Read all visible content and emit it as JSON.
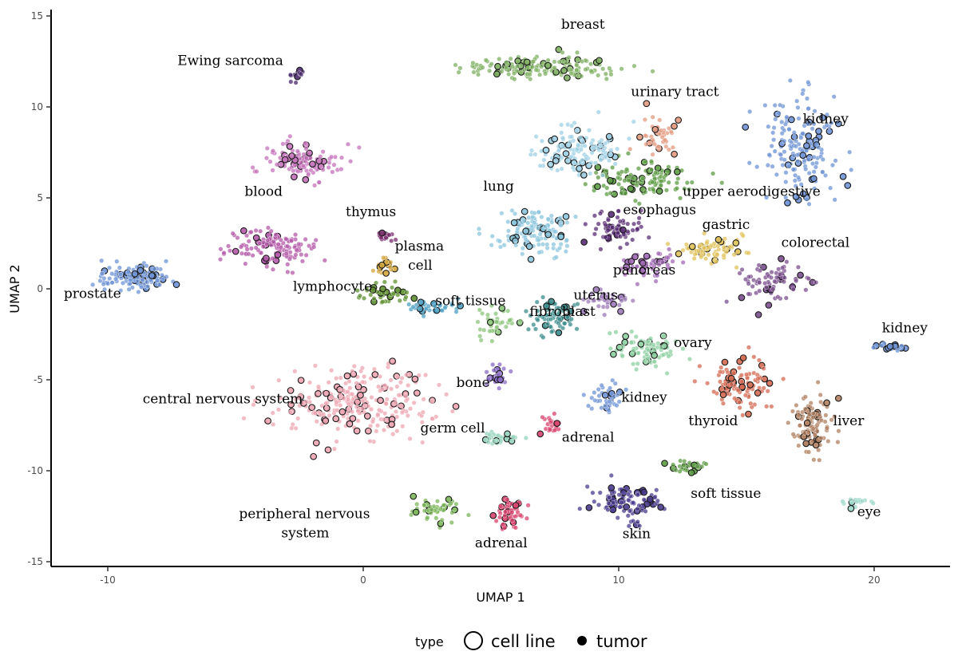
{
  "chart_data": {
    "type": "scatter",
    "title": "",
    "xlabel": "UMAP 1",
    "ylabel": "UMAP 2",
    "xlim": [
      -12.2,
      23.0
    ],
    "ylim": [
      -15.3,
      15.5
    ],
    "x_ticks": [
      {
        "value": -10,
        "label": "-10"
      },
      {
        "value": 0,
        "label": "0"
      },
      {
        "value": 10,
        "label": "10"
      },
      {
        "value": 20,
        "label": "20"
      }
    ],
    "y_ticks": [
      {
        "value": 15,
        "label": "15"
      },
      {
        "value": 10,
        "label": "10"
      },
      {
        "value": 5,
        "label": "5"
      },
      {
        "value": 0,
        "label": "0"
      },
      {
        "value": -5,
        "label": "-5"
      },
      {
        "value": -10,
        "label": "-10"
      },
      {
        "value": -15,
        "label": "-15"
      }
    ],
    "grid": false,
    "legend": {
      "position": "bottom",
      "title": "type",
      "entries": [
        {
          "label": "cell line",
          "marker": "open-circle"
        },
        {
          "label": "tumor",
          "marker": "filled-circle"
        }
      ]
    },
    "clusters": [
      {
        "label": "breast",
        "cx": 7.0,
        "cy": 12.2,
        "sx": 2.6,
        "sy": 0.55,
        "n": 160,
        "color": "#7fb062",
        "label_x": 8.6,
        "label_y": 14.3
      },
      {
        "label": "Ewing sarcoma",
        "cx": -2.6,
        "cy": 11.8,
        "sx": 0.25,
        "sy": 0.3,
        "n": 14,
        "color": "#4a2a6e",
        "label_x": -5.2,
        "label_y": 12.3
      },
      {
        "label": "kidney",
        "cx": 17.2,
        "cy": 7.8,
        "sx": 1.2,
        "sy": 2.2,
        "n": 170,
        "color": "#6f94d6",
        "label_x": 18.1,
        "label_y": 9.1
      },
      {
        "label": "urinary tract",
        "cx": 11.5,
        "cy": 8.3,
        "sx": 0.7,
        "sy": 0.9,
        "n": 45,
        "color": "#e39a80",
        "label_x": 12.2,
        "label_y": 10.6
      },
      {
        "label": "upper aerodigestive",
        "cx": 10.8,
        "cy": 6.0,
        "sx": 1.7,
        "sy": 0.8,
        "n": 120,
        "color": "#5d9c44",
        "label_x": 15.2,
        "label_y": 5.1
      },
      {
        "label": "blood",
        "cx": -2.4,
        "cy": 7.0,
        "sx": 1.2,
        "sy": 0.8,
        "n": 110,
        "color": "#c472ba",
        "label_x": -3.9,
        "label_y": 5.1
      },
      {
        "label": "blood",
        "cx": -3.6,
        "cy": 2.3,
        "sx": 1.5,
        "sy": 0.9,
        "n": 130,
        "color": "#b459a8",
        "label_x": null,
        "label_y": null
      },
      {
        "label": "thymus",
        "cx": 0.8,
        "cy": 2.9,
        "sx": 0.5,
        "sy": 0.25,
        "n": 18,
        "color": "#7a2c6e",
        "label_x": 0.3,
        "label_y": 4.0
      },
      {
        "label": "lung",
        "cx": 6.7,
        "cy": 3.2,
        "sx": 1.3,
        "sy": 1.0,
        "n": 140,
        "color": "#8cc6dd",
        "label_x": 5.3,
        "label_y": 5.4
      },
      {
        "label": "lung",
        "cx": 8.5,
        "cy": 7.6,
        "sx": 1.4,
        "sy": 1.1,
        "n": 130,
        "color": "#9fd0e4",
        "label_x": null,
        "label_y": null
      },
      {
        "label": "esophagus",
        "cx": 9.9,
        "cy": 3.3,
        "sx": 0.9,
        "sy": 0.7,
        "n": 70,
        "color": "#5a2d75",
        "label_x": 11.6,
        "label_y": 4.1
      },
      {
        "label": "gastric",
        "cx": 13.6,
        "cy": 2.1,
        "sx": 1.2,
        "sy": 0.6,
        "n": 80,
        "color": "#e0c25a",
        "label_x": 14.2,
        "label_y": 3.3
      },
      {
        "label": "colorectal",
        "cx": 16.0,
        "cy": 0.4,
        "sx": 1.0,
        "sy": 1.0,
        "n": 80,
        "color": "#7b4f8e",
        "label_x": 17.7,
        "label_y": 2.3
      },
      {
        "label": "pancreas",
        "cx": 11.1,
        "cy": 1.3,
        "sx": 1.0,
        "sy": 0.6,
        "n": 60,
        "color": "#a16ab5",
        "label_x": 11.0,
        "label_y": 0.8
      },
      {
        "label": "plasma cell",
        "cx": 0.9,
        "cy": 1.3,
        "sx": 0.45,
        "sy": 0.35,
        "n": 18,
        "color": "#d4a63c",
        "label_x": 2.2,
        "label_y": 2.1
      },
      {
        "label": "lymphocyte",
        "cx": 0.8,
        "cy": -0.3,
        "sx": 0.8,
        "sy": 0.55,
        "n": 40,
        "color": "#5e8f2f",
        "label_x": -1.2,
        "label_y": -0.1
      },
      {
        "label": "lymphocyte",
        "cx": 2.6,
        "cy": -1.0,
        "sx": 1.0,
        "sy": 0.3,
        "n": 35,
        "color": "#4fa1c4",
        "label_x": null,
        "label_y": null
      },
      {
        "label": "prostate",
        "cx": -8.9,
        "cy": 0.6,
        "sx": 1.1,
        "sy": 0.55,
        "n": 140,
        "color": "#6f94d6",
        "label_x": -10.6,
        "label_y": -0.5
      },
      {
        "label": "soft tissue",
        "cx": 5.2,
        "cy": -1.9,
        "sx": 0.8,
        "sy": 0.7,
        "n": 40,
        "color": "#8bc47a",
        "label_x": 4.2,
        "label_y": -0.9
      },
      {
        "label": "fibroblast",
        "cx": 7.4,
        "cy": -1.4,
        "sx": 0.9,
        "sy": 0.8,
        "n": 70,
        "color": "#3b8c8c",
        "label_x": 7.8,
        "label_y": -1.5
      },
      {
        "label": "uterus",
        "cx": 9.7,
        "cy": -0.6,
        "sx": 0.8,
        "sy": 0.6,
        "n": 45,
        "color": "#9c7bb8",
        "label_x": 9.1,
        "label_y": -0.6
      },
      {
        "label": "ovary",
        "cx": 11.0,
        "cy": -3.4,
        "sx": 1.3,
        "sy": 0.8,
        "n": 90,
        "color": "#8fd0a3",
        "label_x": 12.9,
        "label_y": -3.2
      },
      {
        "label": "bone",
        "cx": 5.3,
        "cy": -4.7,
        "sx": 0.5,
        "sy": 0.6,
        "n": 25,
        "color": "#8a6ac6",
        "label_x": 4.3,
        "label_y": -5.4
      },
      {
        "label": "kidney",
        "cx": 9.5,
        "cy": -6.0,
        "sx": 0.45,
        "sy": 0.6,
        "n": 40,
        "color": "#6f94d6",
        "label_x": 11.0,
        "label_y": -6.2
      },
      {
        "label": "thyroid",
        "cx": 14.6,
        "cy": -5.3,
        "sx": 1.1,
        "sy": 1.1,
        "n": 110,
        "color": "#d46a52",
        "label_x": 13.7,
        "label_y": -7.5
      },
      {
        "label": "liver",
        "cx": 17.6,
        "cy": -7.5,
        "sx": 0.8,
        "sy": 1.3,
        "n": 110,
        "color": "#b08060",
        "label_x": 19.0,
        "label_y": -7.5
      },
      {
        "label": "kidney",
        "cx": 20.6,
        "cy": -3.2,
        "sx": 0.5,
        "sy": 0.2,
        "n": 25,
        "color": "#6f94d6",
        "label_x": 21.2,
        "label_y": -2.4
      },
      {
        "label": "central nervous system",
        "cx": -0.2,
        "cy": -6.3,
        "sx": 2.4,
        "sy": 1.6,
        "n": 270,
        "color": "#eea5b2",
        "label_x": -5.5,
        "label_y": -6.3
      },
      {
        "label": "germ cell",
        "cx": 5.3,
        "cy": -8.2,
        "sx": 0.6,
        "sy": 0.25,
        "n": 30,
        "color": "#96d3bc",
        "label_x": 3.5,
        "label_y": -7.9
      },
      {
        "label": "adrenal",
        "cx": 7.4,
        "cy": -7.5,
        "sx": 0.3,
        "sy": 0.5,
        "n": 25,
        "color": "#d8446e",
        "label_x": 8.8,
        "label_y": -8.4
      },
      {
        "label": "soft tissue",
        "cx": 12.7,
        "cy": -9.8,
        "sx": 0.6,
        "sy": 0.3,
        "n": 28,
        "color": "#5d9c44",
        "label_x": 14.2,
        "label_y": -11.5
      },
      {
        "label": "peripheral nervous system",
        "cx": 2.9,
        "cy": -12.1,
        "sx": 0.8,
        "sy": 0.5,
        "n": 50,
        "color": "#7bb659",
        "label_x": -2.3,
        "label_y": -12.6
      },
      {
        "label": "adrenal",
        "cx": 5.7,
        "cy": -12.4,
        "sx": 0.45,
        "sy": 0.7,
        "n": 55,
        "color": "#d8446e",
        "label_x": 5.4,
        "label_y": -14.2
      },
      {
        "label": "skin",
        "cx": 10.3,
        "cy": -11.7,
        "sx": 1.1,
        "sy": 0.8,
        "n": 100,
        "color": "#4b3b8f",
        "label_x": 10.7,
        "label_y": -13.7
      },
      {
        "label": "eye",
        "cx": 19.2,
        "cy": -11.7,
        "sx": 0.5,
        "sy": 0.2,
        "n": 18,
        "color": "#9bd7c8",
        "label_x": 19.8,
        "label_y": -12.5
      }
    ]
  },
  "label_texts": {
    "peripheral_line2": "system",
    "plasma_line2": "cell"
  }
}
